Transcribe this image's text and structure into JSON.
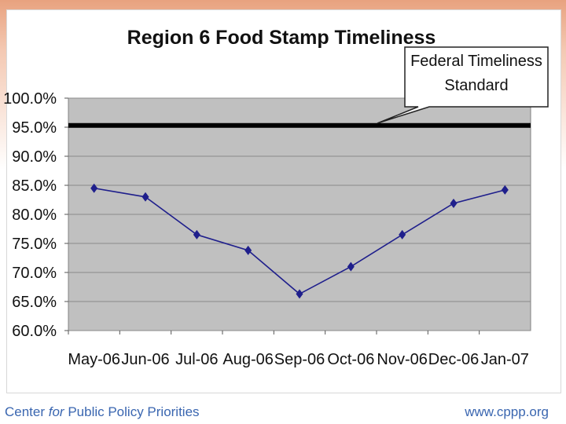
{
  "chart_data": {
    "type": "line",
    "title": "Region 6 Food Stamp Timeliness",
    "categories": [
      "May-06",
      "Jun-06",
      "Jul-06",
      "Aug-06",
      "Sep-06",
      "Oct-06",
      "Nov-06",
      "Dec-06",
      "Jan-07"
    ],
    "series": [
      {
        "values": [
          84.5,
          83.0,
          76.5,
          73.8,
          66.3,
          71.0,
          76.5,
          81.9,
          84.2
        ],
        "color": "#1f1f8c"
      }
    ],
    "reference_line": {
      "value": 95.3,
      "label_line1": "Federal Timeliness",
      "label_line2": "Standard"
    },
    "yticks": [
      "100.0%",
      "95.0%",
      "90.0%",
      "85.0%",
      "80.0%",
      "75.0%",
      "70.0%",
      "65.0%",
      "60.0%"
    ],
    "ylim": [
      60,
      100
    ],
    "grid": true,
    "plot_bg": "#c0c0c0"
  },
  "footer": {
    "org_pre": "Center ",
    "org_italic": "for",
    "org_post": " Public Policy Priorities",
    "url": "www.cppp.org"
  }
}
